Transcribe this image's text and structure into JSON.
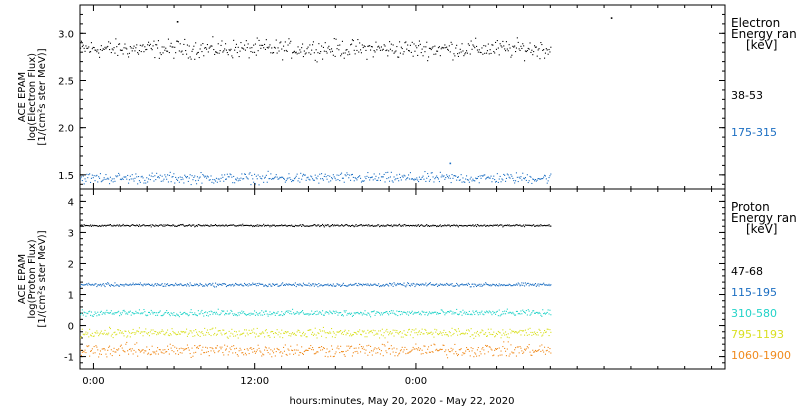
{
  "chart_data": [
    {
      "type": "scatter",
      "panel": "electron",
      "ylabel_lines": [
        "ACE EPAM",
        "log(Electron Flux)",
        "[1/(cm²s ster MeV)]"
      ],
      "ylim": [
        1.35,
        3.3
      ],
      "yticks": [
        1.5,
        2.0,
        2.5,
        3.0
      ],
      "ytick_labels": [
        "1.5",
        "2.0",
        "2.5",
        "3.0"
      ],
      "legend_title_lines": [
        "Electron",
        "Energy ran",
        "[keV]"
      ],
      "series": [
        {
          "name": "38-53",
          "color": "#000000",
          "base": 2.84,
          "noise": 0.06,
          "outliers": [
            [
              6.2,
              3.13
            ],
            [
              38.5,
              3.17
            ]
          ]
        },
        {
          "name": "175-315",
          "color": "#1b6ec2",
          "base": 1.47,
          "noise": 0.035,
          "outliers": [
            [
              26.5,
              1.63
            ]
          ]
        }
      ]
    },
    {
      "type": "scatter",
      "panel": "proton",
      "ylabel_lines": [
        "ACE EPAM",
        "log(Proton Flux)",
        "[1/(cm²s ster MeV)]"
      ],
      "ylim": [
        -1.4,
        4.4
      ],
      "yticks": [
        -1,
        0,
        1,
        2,
        3,
        4
      ],
      "ytick_labels": [
        "-1",
        "0",
        "1",
        "2",
        "3",
        "4"
      ],
      "legend_title_lines": [
        "Proton",
        "Energy ran",
        "[keV]"
      ],
      "series": [
        {
          "name": "47-68",
          "color": "#000000",
          "base": 3.24,
          "noise": 0.02,
          "outliers": []
        },
        {
          "name": "115-195",
          "color": "#1b6ec2",
          "base": 1.33,
          "noise": 0.035,
          "outliers": []
        },
        {
          "name": "310-580",
          "color": "#22d3c8",
          "base": 0.42,
          "noise": 0.06,
          "outliers": []
        },
        {
          "name": "795-1193",
          "color": "#d9e021",
          "base": -0.22,
          "noise": 0.09,
          "outliers": []
        },
        {
          "name": "1060-1900",
          "color": "#f08a1c",
          "base": -0.78,
          "noise": 0.13,
          "outliers": []
        }
      ]
    }
  ],
  "x_axis": {
    "range_hours": [
      -1,
      47
    ],
    "data_end_hour": 34,
    "ticks_hours": [
      0,
      12,
      24
    ],
    "tick_labels": [
      "0:00",
      "12:00",
      "0:00"
    ],
    "label": "hours:minutes, May 20, 2020 - May 22, 2020"
  }
}
